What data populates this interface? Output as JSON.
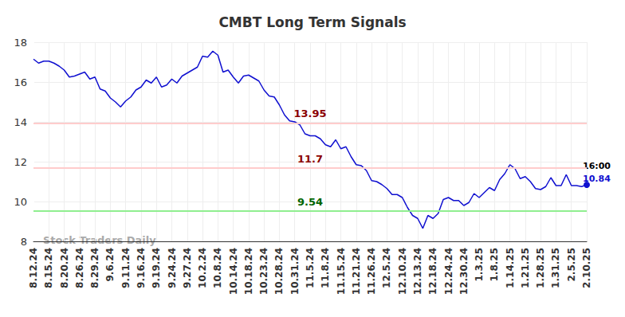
{
  "chart_data": {
    "type": "line",
    "title": "CMBT Long Term Signals",
    "watermark": "Stock Traders Daily",
    "categories": [
      "8.12.24",
      null,
      null,
      "8.15.24",
      null,
      null,
      "8.20.24",
      null,
      null,
      "8.26.24",
      null,
      null,
      "8.29.24",
      null,
      null,
      "9.6.24",
      null,
      null,
      "9.11.24",
      null,
      null,
      "9.16.24",
      null,
      null,
      "9.19.24",
      null,
      null,
      "9.24.24",
      null,
      null,
      "9.27.24",
      null,
      null,
      "10.2.24",
      null,
      null,
      "10.8.24",
      null,
      null,
      "10.14.24",
      null,
      null,
      "10.18.24",
      null,
      null,
      "10.23.24",
      null,
      null,
      "10.28.24",
      null,
      null,
      "10.31.24",
      null,
      null,
      "11.5.24",
      null,
      null,
      "11.8.24",
      null,
      null,
      "11.15.24",
      null,
      null,
      "11.21.24",
      null,
      null,
      "11.26.24",
      null,
      null,
      "12.5.24",
      null,
      null,
      "12.10.24",
      null,
      null,
      "12.13.24",
      null,
      null,
      "12.18.24",
      null,
      null,
      "12.24.24",
      null,
      null,
      "12.30.24",
      null,
      null,
      "1.3.25",
      null,
      null,
      "1.8.25",
      null,
      null,
      "1.14.25",
      null,
      null,
      "1.21.25",
      null,
      null,
      "1.28.25",
      null,
      null,
      "1.31.25",
      null,
      null,
      "2.5.25",
      null,
      null,
      "2.10.25"
    ],
    "values": [
      17.15,
      16.95,
      17.05,
      17.05,
      16.95,
      16.8,
      16.6,
      16.25,
      16.3,
      16.4,
      16.5,
      16.15,
      16.25,
      15.65,
      15.55,
      15.2,
      15.0,
      14.75,
      15.05,
      15.25,
      15.6,
      15.75,
      16.1,
      15.95,
      16.25,
      15.75,
      15.85,
      16.15,
      15.95,
      16.3,
      16.45,
      16.6,
      16.75,
      17.3,
      17.25,
      17.55,
      17.35,
      16.5,
      16.6,
      16.25,
      15.95,
      16.3,
      16.35,
      16.2,
      16.05,
      15.6,
      15.3,
      15.25,
      14.85,
      14.35,
      14.05,
      14.0,
      13.85,
      13.4,
      13.3,
      13.3,
      13.15,
      12.85,
      12.75,
      13.1,
      12.65,
      12.75,
      12.25,
      11.85,
      11.8,
      11.55,
      11.05,
      11.0,
      10.85,
      10.65,
      10.35,
      10.35,
      10.2,
      9.7,
      9.3,
      9.15,
      8.65,
      9.3,
      9.15,
      9.4,
      10.1,
      10.2,
      10.05,
      10.05,
      9.8,
      9.95,
      10.4,
      10.2,
      10.45,
      10.7,
      10.55,
      11.1,
      11.4,
      11.85,
      11.65,
      11.15,
      11.25,
      11.0,
      10.65,
      10.6,
      10.75,
      11.2,
      10.8,
      10.8,
      11.35,
      10.8,
      10.8,
      10.75,
      10.84
    ],
    "color": "#1010d0",
    "last_point_label": "16:00",
    "annotations": [
      {
        "value": 13.95,
        "color": "#ffcccc",
        "label_color": "#8b0000"
      },
      {
        "value": 11.7,
        "color": "#ffcccc",
        "label_color": "#8b0000"
      },
      {
        "value": 9.54,
        "color": "#90ee90",
        "label_color": "#006400"
      }
    ],
    "ylim": [
      8,
      18
    ],
    "yticks": [
      8,
      10,
      12,
      14,
      16,
      18
    ],
    "grid": true
  }
}
